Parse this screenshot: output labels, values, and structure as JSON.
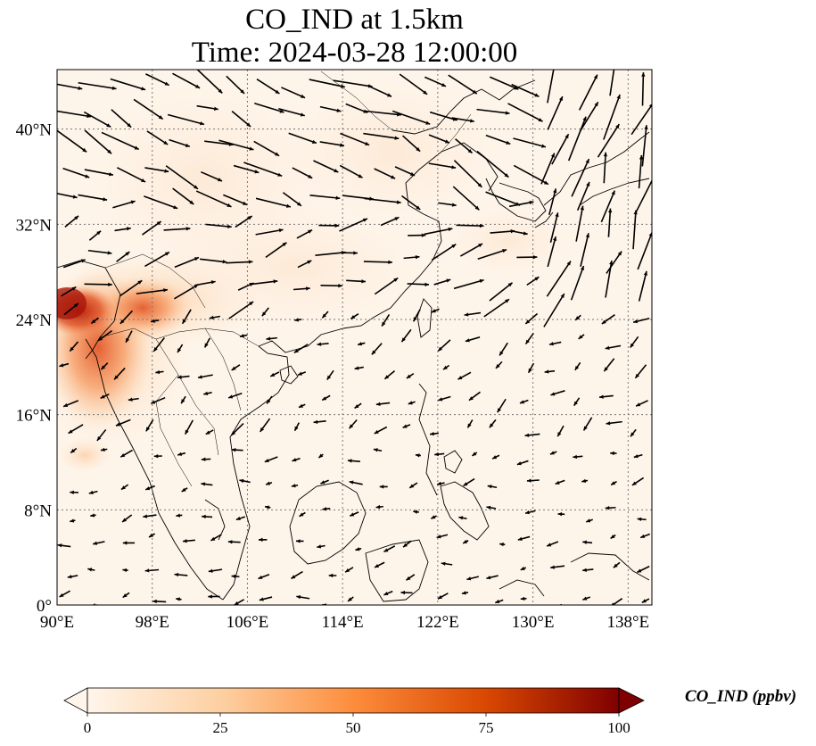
{
  "title": {
    "line1": "CO_IND at 1.5km",
    "line2": "Time: 2024-03-28 12:00:00"
  },
  "map": {
    "lon_range": [
      90,
      140
    ],
    "lat_range": [
      0,
      45
    ],
    "lon_ticks": [
      {
        "value": 90,
        "label": "90°E"
      },
      {
        "value": 98,
        "label": "98°E"
      },
      {
        "value": 106,
        "label": "106°E"
      },
      {
        "value": 114,
        "label": "114°E"
      },
      {
        "value": 122,
        "label": "122°E"
      },
      {
        "value": 130,
        "label": "130°E"
      },
      {
        "value": 138,
        "label": "138°E"
      }
    ],
    "lat_ticks": [
      {
        "value": 0,
        "label": "0°"
      },
      {
        "value": 8,
        "label": "8°N"
      },
      {
        "value": 16,
        "label": "16°N"
      },
      {
        "value": 24,
        "label": "24°N"
      },
      {
        "value": 32,
        "label": "32°N"
      },
      {
        "value": 40,
        "label": "40°N"
      }
    ],
    "gridlines": true
  },
  "colorbar": {
    "label": "CO_IND (ppbv)",
    "min": 0,
    "max": 100,
    "extend": "both",
    "ticks": [
      {
        "value": 0,
        "label": "0"
      },
      {
        "value": 25,
        "label": "25"
      },
      {
        "value": 50,
        "label": "50"
      },
      {
        "value": 75,
        "label": "75"
      },
      {
        "value": 100,
        "label": "100"
      }
    ],
    "colors": [
      "#fff5eb",
      "#fdd0a2",
      "#fd8d3c",
      "#d94801",
      "#7f0000"
    ]
  }
}
